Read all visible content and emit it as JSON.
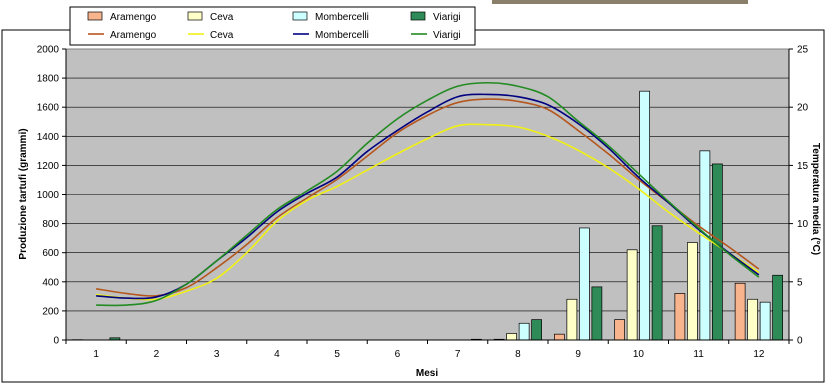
{
  "chart_data": {
    "type": "bar",
    "title": "",
    "xlabel": "Mesi",
    "ylabel": "Produzione tartufi (grammi)",
    "y2label": "Temperatura media (°C)",
    "categories": [
      "1",
      "2",
      "3",
      "4",
      "5",
      "6",
      "7",
      "8",
      "9",
      "10",
      "11",
      "12"
    ],
    "ylim": [
      0,
      2000
    ],
    "yticks": [
      "0",
      "200",
      "400",
      "600",
      "800",
      "1000",
      "1200",
      "1400",
      "1600",
      "1800",
      "2000"
    ],
    "y2lim": [
      0,
      25
    ],
    "y2ticks": [
      "0",
      "5",
      "10",
      "15",
      "20",
      "25"
    ],
    "grid": true,
    "legend_placement": "top",
    "bar_series": [
      {
        "name": "Aramengo",
        "color": "#f8b48c",
        "values": [
          2,
          0,
          0,
          0,
          0,
          0,
          0,
          5,
          40,
          140,
          320,
          390
        ]
      },
      {
        "name": "Ceva",
        "color": "#ffffc8",
        "values": [
          0,
          0,
          0,
          0,
          0,
          0,
          0,
          45,
          280,
          620,
          670,
          280
        ]
      },
      {
        "name": "Mombercelli",
        "color": "#ccffff",
        "values": [
          0,
          0,
          0,
          0,
          0,
          0,
          0,
          115,
          770,
          1710,
          1300,
          260
        ]
      },
      {
        "name": "Viarigi",
        "color": "#2e8b57",
        "values": [
          15,
          0,
          0,
          0,
          0,
          0,
          5,
          140,
          365,
          785,
          1210,
          445
        ]
      }
    ],
    "line_series": [
      {
        "name": "Aramengo",
        "color": "#b5561e",
        "x": [
          1,
          1.5,
          2,
          2.5,
          3,
          3.5,
          4,
          4.5,
          5,
          5.5,
          6,
          6.5,
          7,
          7.5,
          8,
          8.5,
          9,
          9.5,
          10,
          10.5,
          11,
          11.5,
          12
        ],
        "values": [
          4.4,
          4.0,
          3.8,
          4.5,
          6.2,
          8.2,
          10.5,
          12.2,
          13.8,
          15.8,
          17.8,
          19.3,
          20.4,
          20.7,
          20.5,
          19.8,
          18.0,
          16.0,
          13.8,
          11.8,
          9.8,
          8.0,
          6.1
        ]
      },
      {
        "name": "Ceva",
        "color": "#f0f014",
        "x": [
          1,
          1.5,
          2,
          2.5,
          3,
          3.5,
          4,
          4.5,
          5,
          5.5,
          6,
          6.5,
          7,
          7.5,
          8,
          8.5,
          9,
          9.5,
          10,
          10.5,
          11,
          11.5,
          12
        ],
        "values": [
          3.9,
          3.6,
          3.5,
          4.2,
          5.3,
          7.5,
          10.2,
          12.0,
          13.2,
          14.6,
          16.0,
          17.3,
          18.4,
          18.5,
          18.3,
          17.5,
          16.3,
          14.8,
          13.0,
          11.0,
          9.2,
          7.5,
          5.8
        ]
      },
      {
        "name": "Mombercelli",
        "color": "#000080",
        "x": [
          1,
          1.5,
          2,
          2.5,
          3,
          3.5,
          4,
          4.5,
          5,
          5.5,
          6,
          6.5,
          7,
          7.5,
          8,
          8.5,
          9,
          9.5,
          10,
          10.5,
          11,
          11.5,
          12
        ],
        "values": [
          3.8,
          3.6,
          3.7,
          4.8,
          6.8,
          8.8,
          11.0,
          12.6,
          14.0,
          16.2,
          18.0,
          19.6,
          20.9,
          21.1,
          20.9,
          20.2,
          18.6,
          16.5,
          14.0,
          11.8,
          9.5,
          7.5,
          5.6
        ]
      },
      {
        "name": "Viarigi",
        "color": "#228b22",
        "x": [
          1,
          1.5,
          2,
          2.5,
          3,
          3.5,
          4,
          4.5,
          5,
          5.5,
          6,
          6.5,
          7,
          7.5,
          8,
          8.5,
          9,
          9.5,
          10,
          10.5,
          11,
          11.5,
          12
        ],
        "values": [
          3.0,
          3.0,
          3.4,
          4.8,
          6.8,
          9.0,
          11.2,
          12.8,
          14.5,
          16.9,
          19.0,
          20.6,
          21.8,
          22.1,
          21.8,
          20.9,
          18.8,
          16.7,
          14.3,
          11.9,
          9.6,
          7.4,
          5.4
        ]
      }
    ]
  }
}
